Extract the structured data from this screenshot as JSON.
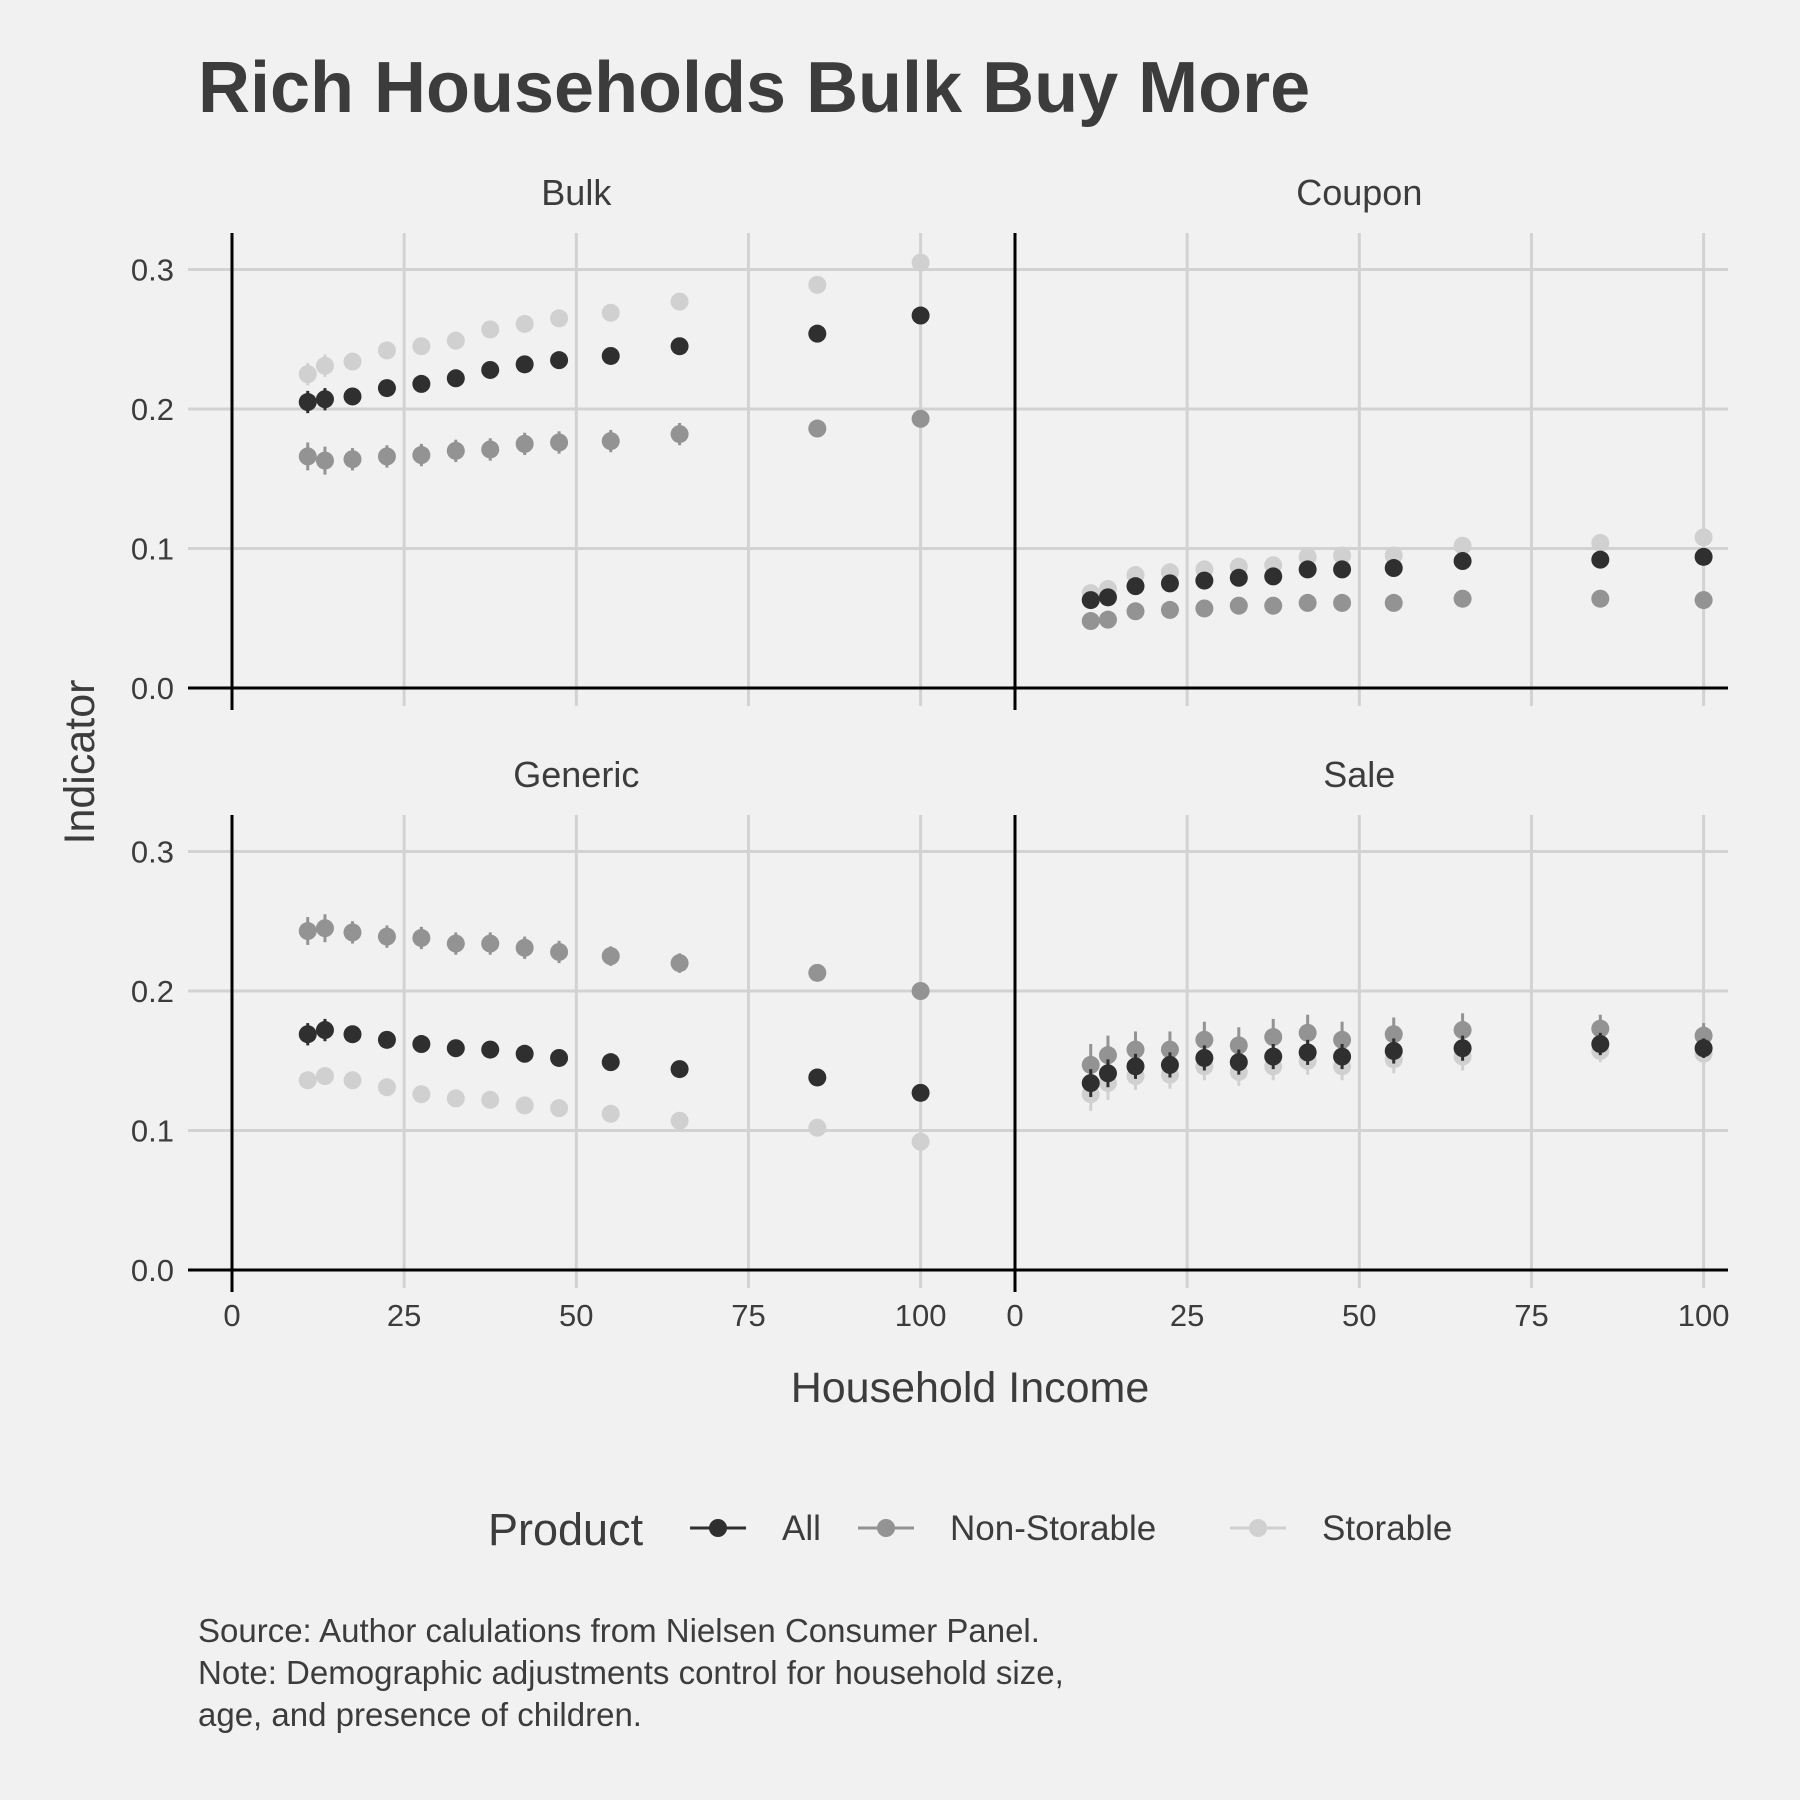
{
  "chart_data": {
    "type": "scatter",
    "title": "Rich Households Bulk Buy More",
    "xlabel": "Household Income",
    "ylabel": "Indicator",
    "xlim": [
      0,
      100
    ],
    "ylim": [
      0,
      0.3
    ],
    "x_ticks": [
      "0",
      "25",
      "50",
      "75",
      "100"
    ],
    "y_ticks": [
      "0.0",
      "0.1",
      "0.2",
      "0.3"
    ],
    "grid": true,
    "legend_title": "Product",
    "legend_position": "bottom",
    "series_styles": [
      {
        "name": "All",
        "color": "#2f2f2f"
      },
      {
        "name": "Non-Storable",
        "color": "#939393"
      },
      {
        "name": "Storable",
        "color": "#d0d0d0"
      }
    ],
    "x": [
      11,
      13.5,
      17.5,
      22.5,
      27.5,
      32.5,
      37.5,
      42.5,
      47.5,
      55,
      65,
      85,
      100
    ],
    "panels": [
      {
        "title": "Bulk",
        "series": [
          {
            "name": "All",
            "values": [
              0.205,
              0.207,
              0.209,
              0.215,
              0.218,
              0.222,
              0.228,
              0.232,
              0.235,
              0.238,
              0.245,
              0.254,
              0.267
            ],
            "err": [
              0.008,
              0.008,
              0.006,
              0.006,
              0.006,
              0.006,
              0.006,
              0.006,
              0.006,
              0.006,
              0.006,
              0.006,
              0.004
            ]
          },
          {
            "name": "Non-Storable",
            "values": [
              0.166,
              0.163,
              0.164,
              0.166,
              0.167,
              0.17,
              0.171,
              0.175,
              0.176,
              0.177,
              0.182,
              0.186,
              0.193
            ],
            "err": [
              0.01,
              0.01,
              0.008,
              0.008,
              0.008,
              0.008,
              0.008,
              0.008,
              0.008,
              0.008,
              0.008,
              0.006,
              0.004
            ]
          },
          {
            "name": "Storable",
            "values": [
              0.225,
              0.231,
              0.234,
              0.242,
              0.245,
              0.249,
              0.257,
              0.261,
              0.265,
              0.269,
              0.277,
              0.289,
              0.305
            ],
            "err": [
              0.008,
              0.008,
              0.006,
              0.006,
              0.006,
              0.006,
              0.006,
              0.006,
              0.006,
              0.006,
              0.006,
              0.005,
              0.004
            ]
          }
        ]
      },
      {
        "title": "Coupon",
        "series": [
          {
            "name": "All",
            "values": [
              0.063,
              0.065,
              0.073,
              0.075,
              0.077,
              0.079,
              0.08,
              0.085,
              0.085,
              0.086,
              0.091,
              0.092,
              0.094
            ],
            "err": [
              0.006,
              0.005,
              0.004,
              0.004,
              0.004,
              0.004,
              0.004,
              0.004,
              0.004,
              0.004,
              0.004,
              0.003,
              0.003
            ]
          },
          {
            "name": "Non-Storable",
            "values": [
              0.048,
              0.049,
              0.055,
              0.056,
              0.057,
              0.059,
              0.059,
              0.061,
              0.061,
              0.061,
              0.064,
              0.064,
              0.063
            ],
            "err": [
              0.005,
              0.004,
              0.003,
              0.003,
              0.003,
              0.003,
              0.003,
              0.003,
              0.003,
              0.003,
              0.003,
              0.002,
              0.002
            ]
          },
          {
            "name": "Storable",
            "values": [
              0.068,
              0.071,
              0.081,
              0.083,
              0.085,
              0.087,
              0.088,
              0.094,
              0.095,
              0.095,
              0.102,
              0.104,
              0.108
            ],
            "err": [
              0.006,
              0.006,
              0.005,
              0.005,
              0.005,
              0.005,
              0.005,
              0.005,
              0.005,
              0.005,
              0.005,
              0.004,
              0.003
            ]
          }
        ]
      },
      {
        "title": "Generic",
        "series": [
          {
            "name": "All",
            "values": [
              0.169,
              0.172,
              0.169,
              0.165,
              0.162,
              0.159,
              0.158,
              0.155,
              0.152,
              0.149,
              0.144,
              0.138,
              0.127
            ],
            "err": [
              0.008,
              0.008,
              0.006,
              0.006,
              0.006,
              0.005,
              0.005,
              0.005,
              0.005,
              0.005,
              0.005,
              0.004,
              0.003
            ]
          },
          {
            "name": "Non-Storable",
            "values": [
              0.243,
              0.245,
              0.242,
              0.239,
              0.238,
              0.234,
              0.234,
              0.231,
              0.228,
              0.225,
              0.22,
              0.213,
              0.2
            ],
            "err": [
              0.01,
              0.01,
              0.008,
              0.008,
              0.008,
              0.008,
              0.008,
              0.008,
              0.008,
              0.007,
              0.007,
              0.006,
              0.004
            ]
          },
          {
            "name": "Storable",
            "values": [
              0.136,
              0.139,
              0.136,
              0.131,
              0.126,
              0.123,
              0.122,
              0.118,
              0.116,
              0.112,
              0.107,
              0.102,
              0.092
            ],
            "err": [
              0.006,
              0.006,
              0.005,
              0.005,
              0.005,
              0.004,
              0.004,
              0.004,
              0.004,
              0.004,
              0.004,
              0.003,
              0.003
            ]
          }
        ]
      },
      {
        "title": "Sale",
        "series": [
          {
            "name": "All",
            "values": [
              0.134,
              0.141,
              0.146,
              0.147,
              0.152,
              0.149,
              0.153,
              0.156,
              0.153,
              0.157,
              0.159,
              0.162,
              0.159
            ],
            "err": [
              0.01,
              0.01,
              0.009,
              0.009,
              0.009,
              0.009,
              0.009,
              0.009,
              0.009,
              0.009,
              0.009,
              0.008,
              0.007
            ]
          },
          {
            "name": "Non-Storable",
            "values": [
              0.147,
              0.154,
              0.158,
              0.158,
              0.165,
              0.161,
              0.167,
              0.17,
              0.165,
              0.169,
              0.172,
              0.173,
              0.168
            ],
            "err": [
              0.015,
              0.014,
              0.013,
              0.013,
              0.013,
              0.013,
              0.013,
              0.013,
              0.013,
              0.012,
              0.012,
              0.01,
              0.009
            ]
          },
          {
            "name": "Storable",
            "values": [
              0.126,
              0.134,
              0.139,
              0.14,
              0.146,
              0.142,
              0.146,
              0.15,
              0.146,
              0.151,
              0.153,
              0.157,
              0.155
            ],
            "err": [
              0.012,
              0.012,
              0.01,
              0.01,
              0.01,
              0.01,
              0.01,
              0.01,
              0.01,
              0.01,
              0.01,
              0.008,
              0.007
            ]
          }
        ]
      }
    ]
  },
  "caption": {
    "line1": "Source: Author calulations from Nielsen Consumer Panel.",
    "line2": "Note: Demographic adjustments control for household size,",
    "line3": "age, and presence of children."
  }
}
